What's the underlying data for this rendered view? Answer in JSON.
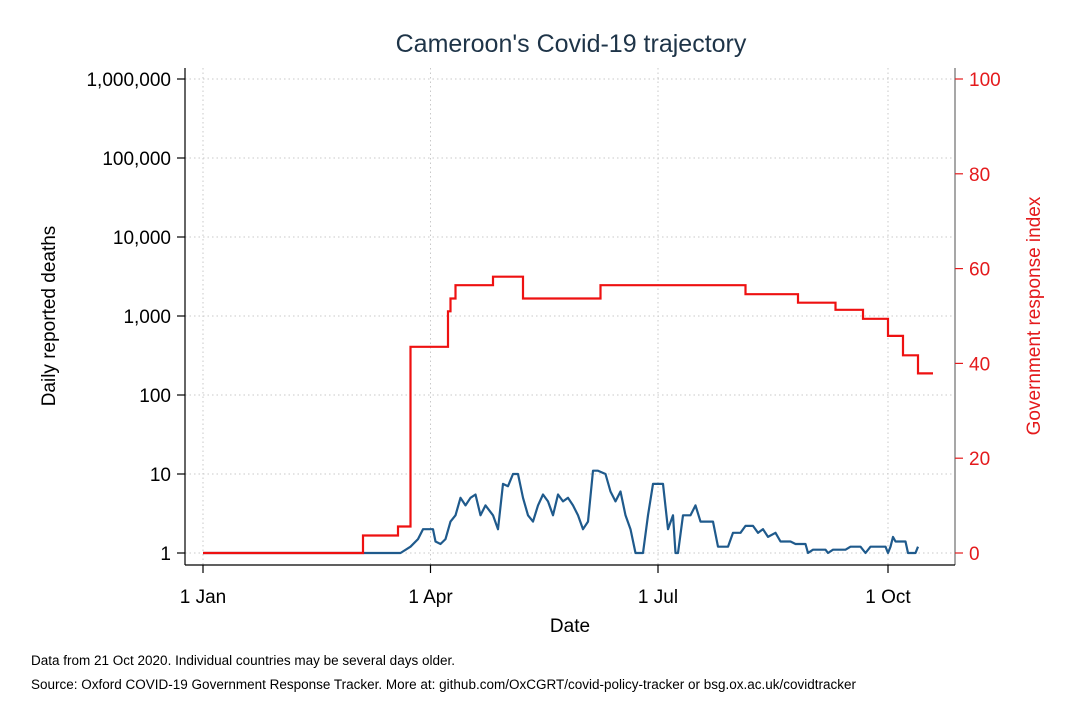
{
  "chart_data": {
    "type": "line",
    "title": "Cameroon's Covid-19 trajectory",
    "xlabel": "Date",
    "ylabel_left": "Daily reported deaths",
    "ylabel_right": "Government response index",
    "x_ticks": [
      "1 Jan",
      "1 Apr",
      "1 Jul",
      "1 Oct"
    ],
    "x_range": [
      "2020-01-01",
      "2020-10-21"
    ],
    "y_left_scale": "log",
    "y_left_ticks": [
      "1",
      "10",
      "100",
      "1,000",
      "10,000",
      "100,000",
      "1,000,000"
    ],
    "y_left_range": [
      1,
      1000000
    ],
    "y_right_ticks": [
      "0",
      "20",
      "40",
      "60",
      "80",
      "100"
    ],
    "y_right_range": [
      0,
      100
    ],
    "grid": true,
    "colors": {
      "deaths": "#1f5a8c",
      "response": "#ee1111",
      "right_axis": "#e41a1c"
    },
    "series": [
      {
        "axis": "left",
        "points": [
          [
            "2020-01-01",
            1
          ],
          [
            "2020-03-20",
            1
          ],
          [
            "2020-03-24",
            1.2
          ],
          [
            "2020-03-27",
            1.5
          ],
          [
            "2020-03-29",
            2
          ],
          [
            "2020-04-02",
            2
          ],
          [
            "2020-04-03",
            1.4
          ],
          [
            "2020-04-05",
            1.3
          ],
          [
            "2020-04-07",
            1.5
          ],
          [
            "2020-04-09",
            2.5
          ],
          [
            "2020-04-11",
            3
          ],
          [
            "2020-04-13",
            5
          ],
          [
            "2020-04-15",
            4
          ],
          [
            "2020-04-17",
            5
          ],
          [
            "2020-04-19",
            5.5
          ],
          [
            "2020-04-21",
            3
          ],
          [
            "2020-04-23",
            4
          ],
          [
            "2020-04-26",
            3
          ],
          [
            "2020-04-28",
            2
          ],
          [
            "2020-04-30",
            7.5
          ],
          [
            "2020-05-02",
            7
          ],
          [
            "2020-05-04",
            10
          ],
          [
            "2020-05-06",
            10
          ],
          [
            "2020-05-08",
            5
          ],
          [
            "2020-05-10",
            3
          ],
          [
            "2020-05-12",
            2.5
          ],
          [
            "2020-05-14",
            4
          ],
          [
            "2020-05-16",
            5.5
          ],
          [
            "2020-05-18",
            4.5
          ],
          [
            "2020-05-20",
            3
          ],
          [
            "2020-05-22",
            5.5
          ],
          [
            "2020-05-24",
            4.5
          ],
          [
            "2020-05-26",
            5
          ],
          [
            "2020-05-28",
            4
          ],
          [
            "2020-05-30",
            3
          ],
          [
            "2020-06-01",
            2
          ],
          [
            "2020-06-03",
            2.5
          ],
          [
            "2020-06-05",
            11
          ],
          [
            "2020-06-07",
            11
          ],
          [
            "2020-06-10",
            10
          ],
          [
            "2020-06-12",
            6
          ],
          [
            "2020-06-14",
            4.5
          ],
          [
            "2020-06-16",
            6
          ],
          [
            "2020-06-18",
            3
          ],
          [
            "2020-06-20",
            2
          ],
          [
            "2020-06-22",
            1
          ],
          [
            "2020-06-25",
            1
          ],
          [
            "2020-06-27",
            3
          ],
          [
            "2020-06-29",
            7.5
          ],
          [
            "2020-07-03",
            7.5
          ],
          [
            "2020-07-05",
            2
          ],
          [
            "2020-07-07",
            3
          ],
          [
            "2020-07-08",
            1
          ],
          [
            "2020-07-09",
            1
          ],
          [
            "2020-07-11",
            3
          ],
          [
            "2020-07-14",
            3
          ],
          [
            "2020-07-16",
            4
          ],
          [
            "2020-07-18",
            2.5
          ],
          [
            "2020-07-23",
            2.5
          ],
          [
            "2020-07-25",
            1.2
          ],
          [
            "2020-07-29",
            1.2
          ],
          [
            "2020-07-31",
            1.8
          ],
          [
            "2020-08-03",
            1.8
          ],
          [
            "2020-08-05",
            2.2
          ],
          [
            "2020-08-08",
            2.2
          ],
          [
            "2020-08-10",
            1.8
          ],
          [
            "2020-08-12",
            2
          ],
          [
            "2020-08-14",
            1.6
          ],
          [
            "2020-08-17",
            1.8
          ],
          [
            "2020-08-19",
            1.4
          ],
          [
            "2020-08-23",
            1.4
          ],
          [
            "2020-08-25",
            1.3
          ],
          [
            "2020-08-29",
            1.3
          ],
          [
            "2020-08-30",
            1
          ],
          [
            "2020-09-01",
            1.1
          ],
          [
            "2020-09-06",
            1.1
          ],
          [
            "2020-09-07",
            1
          ],
          [
            "2020-09-09",
            1.1
          ],
          [
            "2020-09-14",
            1.1
          ],
          [
            "2020-09-16",
            1.2
          ],
          [
            "2020-09-20",
            1.2
          ],
          [
            "2020-09-22",
            1
          ],
          [
            "2020-09-24",
            1.2
          ],
          [
            "2020-09-30",
            1.2
          ],
          [
            "2020-10-01",
            1
          ],
          [
            "2020-10-02",
            1.2
          ],
          [
            "2020-10-03",
            1.6
          ],
          [
            "2020-10-04",
            1.4
          ],
          [
            "2020-10-08",
            1.4
          ],
          [
            "2020-10-09",
            1
          ],
          [
            "2020-10-12",
            1
          ],
          [
            "2020-10-13",
            1.2
          ]
        ]
      },
      {
        "axis": "right",
        "points": [
          [
            "2020-01-01",
            0
          ],
          [
            "2020-03-05",
            0
          ],
          [
            "2020-03-05",
            3.7
          ],
          [
            "2020-03-19",
            3.7
          ],
          [
            "2020-03-19",
            5.6
          ],
          [
            "2020-03-24",
            5.6
          ],
          [
            "2020-03-24",
            43.5
          ],
          [
            "2020-04-08",
            43.5
          ],
          [
            "2020-04-08",
            51
          ],
          [
            "2020-04-09",
            51
          ],
          [
            "2020-04-09",
            53.7
          ],
          [
            "2020-04-11",
            53.7
          ],
          [
            "2020-04-11",
            56.5
          ],
          [
            "2020-04-26",
            56.5
          ],
          [
            "2020-04-26",
            58.3
          ],
          [
            "2020-05-08",
            58.3
          ],
          [
            "2020-05-08",
            53.7
          ],
          [
            "2020-06-08",
            53.7
          ],
          [
            "2020-06-08",
            56.5
          ],
          [
            "2020-08-05",
            56.5
          ],
          [
            "2020-08-05",
            54.6
          ],
          [
            "2020-08-26",
            54.6
          ],
          [
            "2020-08-26",
            52.8
          ],
          [
            "2020-09-10",
            52.8
          ],
          [
            "2020-09-10",
            51.3
          ],
          [
            "2020-09-21",
            51.3
          ],
          [
            "2020-09-21",
            49.4
          ],
          [
            "2020-10-01",
            49.4
          ],
          [
            "2020-10-01",
            45.8
          ],
          [
            "2020-10-07",
            45.8
          ],
          [
            "2020-10-07",
            41.7
          ],
          [
            "2020-10-13",
            41.7
          ],
          [
            "2020-10-13",
            37.9
          ],
          [
            "2020-10-19",
            37.9
          ]
        ]
      }
    ]
  },
  "notes": {
    "line1": "Data from 21 Oct 2020. Individual countries may be several days older.",
    "line2": "Source: Oxford COVID-19 Government Response Tracker. More at: github.com/OxCGRT/covid-policy-tracker or bsg.ox.ac.uk/covidtracker"
  }
}
